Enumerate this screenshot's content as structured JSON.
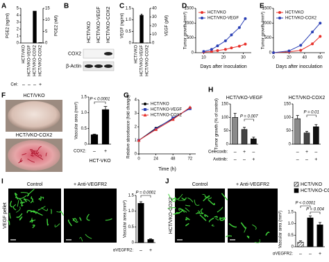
{
  "chart_data": [
    {
      "panel": "A",
      "type": "bar",
      "ylabel": "PGE2 (ng/ml)",
      "y2label": "PGE2 (nM)",
      "categories": [
        "HCT/VKO",
        "HCT/VKO-VEGF",
        "HCT/VKO-COX2",
        "HCT/VKO-COX2"
      ],
      "values": [
        0,
        0,
        4.6,
        0.05
      ],
      "color": "#000000",
      "ylim": [
        0,
        5
      ],
      "yticks": [
        0,
        1,
        2,
        3,
        4,
        5
      ],
      "y2lim": [
        0,
        15
      ],
      "y2ticks": [
        0,
        5,
        10,
        15
      ],
      "rows": [
        {
          "name": "Cel:",
          "marks": [
            "–",
            "–",
            "–",
            "+"
          ]
        }
      ]
    },
    {
      "panel": "B",
      "type": "blot",
      "categories": [
        "HCT/VKO",
        "HCT/VKO-VEGF",
        "HCT/VKO-COX2"
      ],
      "bands": [
        "COX2",
        "β-Actin"
      ]
    },
    {
      "panel": "C",
      "type": "bar",
      "ylabel": "VEGF (ng/ml)",
      "y2label": "VEGF (pM)",
      "categories": [
        "HCT/VKO",
        "HCT/VKO-VEGF",
        "HCT/VKO-COX2"
      ],
      "values": [
        0,
        1.2,
        0
      ],
      "errors": [
        0,
        0.05,
        0
      ],
      "color": "#000000",
      "ylim": [
        0,
        1.5
      ],
      "yticks": [
        0,
        0.5,
        {
          "value": 1,
          "label": "1.0"
        },
        1.5
      ],
      "y2lim": [
        0,
        40
      ],
      "y2ticks": [
        0,
        10,
        20,
        30,
        40
      ]
    },
    {
      "panel": "D",
      "type": "line",
      "ylabel": "Tumor growth (mm³)",
      "xlabel": "Days after inoculation",
      "x": [
        10,
        14,
        17,
        21,
        24,
        28,
        31
      ],
      "xlim": [
        6,
        34
      ],
      "xticks": [
        10,
        20,
        30
      ],
      "ylim": [
        0,
        1500
      ],
      "yticks": [
        0,
        500,
        1000,
        1500
      ],
      "legend": "upper left",
      "series": [
        {
          "name": "HCT/VKO",
          "color": "#e8302a",
          "marker": "circle",
          "values": [
            20,
            40,
            70,
            110,
            160,
            220,
            290
          ]
        },
        {
          "name": "HCT/VKO-VEGF",
          "color": "#2a3fb5",
          "marker": "circle",
          "values": [
            40,
            110,
            230,
            400,
            600,
            850,
            1150
          ]
        }
      ]
    },
    {
      "panel": "E",
      "type": "line",
      "ylabel": "Tumor growth (mm³)",
      "xlabel": "Days after inoculation",
      "x": [
        0,
        20,
        35,
        50,
        60
      ],
      "xlim": [
        0,
        66
      ],
      "xticks": [
        0,
        20,
        40,
        60
      ],
      "ylim": [
        0,
        1500
      ],
      "yticks": [
        0,
        500,
        1000,
        1500
      ],
      "legend": "upper left",
      "series": [
        {
          "name": "HCT/VKO",
          "color": "#e8302a",
          "marker": "circle",
          "values": [
            0,
            30,
            80,
            300,
            550
          ]
        },
        {
          "name": "HCT/VKO-COX2",
          "color": "#2a3fb5",
          "marker": "circle",
          "values": [
            0,
            60,
            250,
            700,
            1000
          ]
        }
      ]
    },
    {
      "panel": "F",
      "type": "bar",
      "ylabel": "Vascular area (mm²)",
      "xlabel": "HCT-VKO",
      "images": [
        "HCT/VKO",
        "HCT/VKO-COX2"
      ],
      "values": [
        0.3,
        1.1
      ],
      "errors": [
        0.02,
        0.1
      ],
      "color": "#000000",
      "ylim": [
        0,
        1.5
      ],
      "yticks": [
        0,
        0.5,
        {
          "value": 1,
          "label": "1.0"
        },
        1.5
      ],
      "rows": [
        {
          "name": "COX2:",
          "marks": [
            "–",
            "+"
          ]
        }
      ],
      "annotations": [
        "P < 0.0001"
      ]
    },
    {
      "panel": "G",
      "type": "line",
      "ylabel": "Relative absorbance (fold change)",
      "xlabel": "Time (h)",
      "x": [
        0,
        24,
        48,
        72
      ],
      "xlim": [
        0,
        80
      ],
      "xticks": [
        0,
        24,
        48,
        72
      ],
      "ylim": [
        0,
        4
      ],
      "yticks": [
        0,
        1,
        2,
        3,
        4
      ],
      "legend": "upper left",
      "series": [
        {
          "name": "HCT/VKO",
          "color": "#000000",
          "marker": "circle",
          "values": [
            1,
            1.9,
            2.6,
            3.4
          ]
        },
        {
          "name": "HCT/VKO-VEGF",
          "color": "#2a3fb5",
          "marker": "square",
          "values": [
            1,
            1.85,
            2.65,
            3.35
          ]
        },
        {
          "name": "HCT/VKO-COX2",
          "color": "#e8302a",
          "marker": "triangle",
          "values": [
            1,
            1.8,
            2.55,
            3.45
          ]
        }
      ]
    },
    {
      "panel": "H",
      "type": "bar",
      "title": "HCT/VKO-VEGF",
      "ylabel": "Tumor growth (% of control)",
      "values": [
        100,
        55,
        20
      ],
      "errors": [
        15,
        8,
        6
      ],
      "colors": [
        "#8a8a8a",
        "#444444",
        "#111111"
      ],
      "ylim": [
        0,
        150
      ],
      "yticks": [
        0,
        50,
        100,
        150
      ],
      "rows": [
        {
          "name": "Celecoxib:",
          "marks": [
            "–",
            "+",
            "–"
          ]
        },
        {
          "name": "Axitinib:",
          "marks": [
            "–",
            "–",
            "+"
          ]
        }
      ],
      "annotations": [
        "P = 0.007"
      ]
    },
    {
      "type": "bar",
      "title": "HCT/VKO-COX2",
      "values": [
        95,
        42,
        65
      ],
      "errors": [
        12,
        6,
        8
      ],
      "colors": [
        "#8a8a8a",
        "#444444",
        "#111111"
      ],
      "ylim": [
        0,
        150
      ],
      "yticks": [
        0,
        50,
        100,
        150
      ],
      "rows": [
        {
          "marks": [
            "–",
            "+",
            "–"
          ]
        },
        {
          "marks": [
            "–",
            "–",
            "+"
          ]
        }
      ],
      "annotations": [
        "P = 0.01"
      ]
    },
    {
      "panel": "I",
      "type": "bar",
      "ylabel": "Vascular area (mm²)",
      "images": [
        "Control",
        "+ Anti-VEGFR2"
      ],
      "image_side_label": "VEGF pellet",
      "values": [
        1.25,
        0.1
      ],
      "errors": [
        0.05,
        0.02
      ],
      "color": "#000000",
      "ylim": [
        0,
        1.5
      ],
      "yticks": [
        0,
        0.5,
        {
          "value": 1,
          "label": "1.0"
        },
        1.5
      ],
      "rows": [
        {
          "name": "αVEGFR2:",
          "marks": [
            "–",
            "+"
          ]
        }
      ],
      "annotations": [
        "P = 0.0001"
      ]
    },
    {
      "panel": "J",
      "type": "bar",
      "ylabel": "Vascular area (mm²)",
      "images": [
        "Control",
        "+ Anti-VEGFR2"
      ],
      "image_side_label": "HCT/VKO-COX2",
      "series": [
        {
          "name": "HCT/VKO",
          "color": "#ffffff",
          "pattern": "hatch",
          "values": [
            0.2,
            null,
            null
          ],
          "errors": [
            0.05,
            null,
            null
          ]
        },
        {
          "name": "HCT/VKO-COX2",
          "color": "#000000",
          "values": [
            null,
            1.25,
            0.95
          ],
          "errors": [
            null,
            0.08,
            0.1
          ]
        }
      ],
      "ylim": [
        0,
        1.5
      ],
      "yticks": [
        0,
        0.5,
        {
          "value": 1,
          "label": "1.0"
        },
        1.5
      ],
      "rows": [
        {
          "name": "αVEGFR2:",
          "marks": [
            "–",
            "–",
            "+"
          ]
        }
      ],
      "annotations": [
        "P < 0.0001",
        "P = 0.004"
      ]
    }
  ]
}
